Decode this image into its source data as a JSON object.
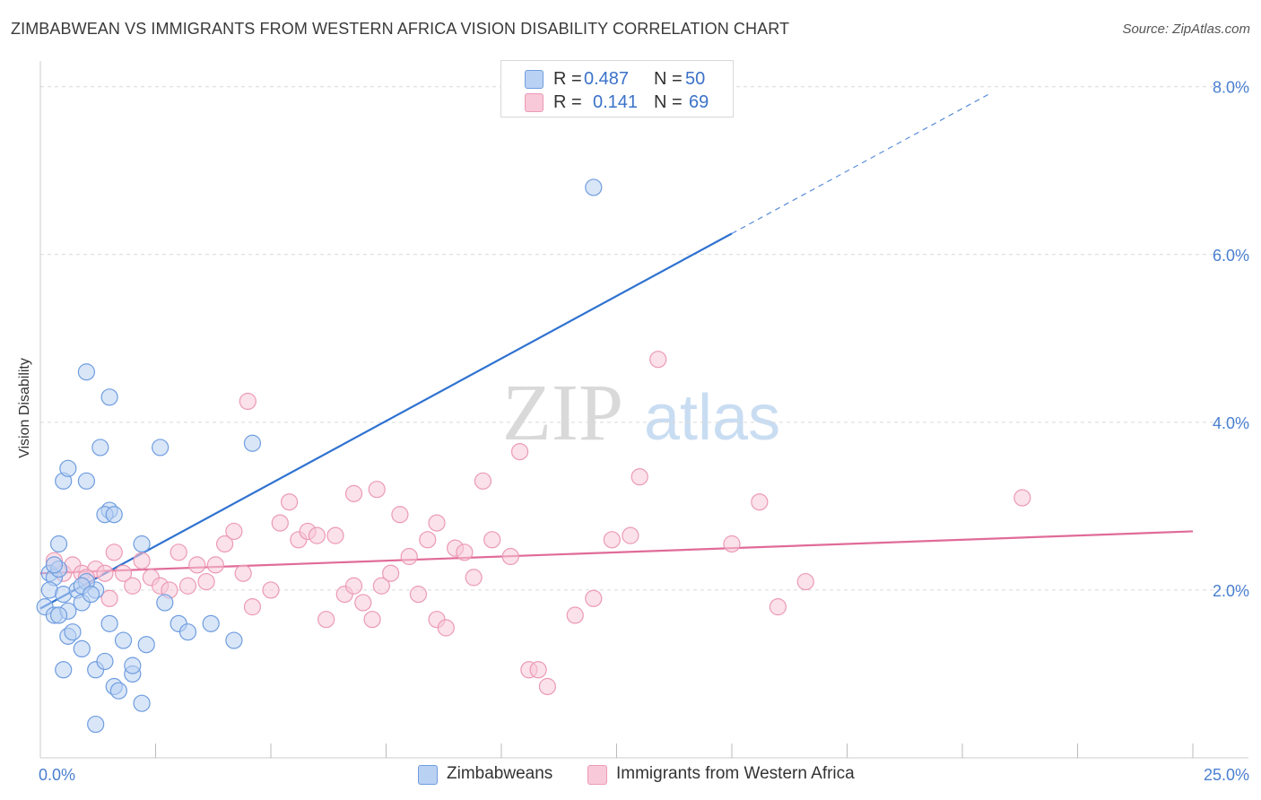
{
  "title": "ZIMBABWEAN VS IMMIGRANTS FROM WESTERN AFRICA VISION DISABILITY CORRELATION CHART",
  "source": "Source: ZipAtlas.com",
  "watermark": {
    "zip": "ZIP",
    "atlas": "atlas"
  },
  "legend_top": [
    {
      "r_label": "R =",
      "r_value": "0.487",
      "n_label": "N =",
      "n_value": "50"
    },
    {
      "r_label": "R =",
      "r_value": "0.141",
      "n_label": "N =",
      "n_value": "69"
    }
  ],
  "legend_bottom": [
    "Zimbabweans",
    "Immigrants from Western Africa"
  ],
  "colors": {
    "blue_fill": "#b9d1f3",
    "blue_stroke": "#6f9de0",
    "blue_line": "#2f72d0",
    "pink_fill": "#f8c9d8",
    "pink_stroke": "#ec9ab4",
    "pink_line": "#e06b98",
    "tick": "#4a7fd0",
    "grid": "#d9d9d9"
  },
  "chart_data": {
    "type": "scatter",
    "title": "ZIMBABWEAN VS IMMIGRANTS FROM WESTERN AFRICA VISION DISABILITY CORRELATION CHART",
    "xlabel": "",
    "ylabel": "Vision Disability",
    "xlim": [
      0,
      25
    ],
    "ylim": [
      0,
      8.2
    ],
    "x_tick_labels": [
      "0.0%",
      "25.0%"
    ],
    "y_ticks": [
      2,
      4,
      6,
      8
    ],
    "y_tick_labels": [
      "2.0%",
      "4.0%",
      "6.0%",
      "8.0%"
    ],
    "grid": "horizontal dashed",
    "legend_position": "top-center",
    "series": [
      {
        "name": "Zimbabweans",
        "trend": {
          "x0": 0,
          "y0": 1.78,
          "x1": 15,
          "y1": 6.25,
          "dashed_to_x": 20.6
        },
        "points": [
          [
            0.2,
            2.2
          ],
          [
            0.3,
            2.15
          ],
          [
            0.4,
            2.25
          ],
          [
            0.2,
            2.0
          ],
          [
            0.5,
            1.95
          ],
          [
            0.1,
            1.8
          ],
          [
            0.3,
            1.7
          ],
          [
            0.6,
            1.75
          ],
          [
            0.8,
            2.0
          ],
          [
            0.9,
            1.85
          ],
          [
            1.2,
            2.0
          ],
          [
            0.4,
            2.55
          ],
          [
            1.0,
            2.1
          ],
          [
            0.3,
            2.3
          ],
          [
            0.9,
            2.05
          ],
          [
            1.1,
            1.95
          ],
          [
            0.5,
            3.3
          ],
          [
            0.6,
            1.45
          ],
          [
            0.5,
            1.05
          ],
          [
            0.9,
            1.3
          ],
          [
            1.2,
            1.05
          ],
          [
            1.4,
            1.15
          ],
          [
            1.5,
            1.6
          ],
          [
            1.8,
            1.4
          ],
          [
            1.6,
            0.85
          ],
          [
            1.2,
            0.4
          ],
          [
            1.7,
            0.8
          ],
          [
            2.0,
            1.0
          ],
          [
            2.2,
            0.65
          ],
          [
            2.0,
            1.1
          ],
          [
            2.3,
            1.35
          ],
          [
            1.0,
            3.3
          ],
          [
            1.5,
            2.95
          ],
          [
            1.4,
            2.9
          ],
          [
            1.6,
            2.9
          ],
          [
            2.2,
            2.55
          ],
          [
            0.6,
            3.45
          ],
          [
            1.3,
            3.7
          ],
          [
            1.0,
            4.6
          ],
          [
            1.5,
            4.3
          ],
          [
            2.6,
            3.7
          ],
          [
            2.7,
            1.85
          ],
          [
            3.0,
            1.6
          ],
          [
            3.7,
            1.6
          ],
          [
            4.2,
            1.4
          ],
          [
            3.2,
            1.5
          ],
          [
            0.7,
            1.5
          ],
          [
            0.4,
            1.7
          ],
          [
            4.6,
            3.75
          ],
          [
            12.0,
            6.8
          ]
        ]
      },
      {
        "name": "Immigrants from Western Africa",
        "trend": {
          "x0": 0,
          "y0": 2.2,
          "x1": 25,
          "y1": 2.7
        },
        "points": [
          [
            0.3,
            2.35
          ],
          [
            0.5,
            2.2
          ],
          [
            0.7,
            2.3
          ],
          [
            0.9,
            2.2
          ],
          [
            1.2,
            2.25
          ],
          [
            1.4,
            2.2
          ],
          [
            1.0,
            2.15
          ],
          [
            1.6,
            2.45
          ],
          [
            1.8,
            2.2
          ],
          [
            1.5,
            1.9
          ],
          [
            2.0,
            2.05
          ],
          [
            2.2,
            2.35
          ],
          [
            2.4,
            2.15
          ],
          [
            2.6,
            2.05
          ],
          [
            2.8,
            2.0
          ],
          [
            3.0,
            2.45
          ],
          [
            3.2,
            2.05
          ],
          [
            3.4,
            2.3
          ],
          [
            3.6,
            2.1
          ],
          [
            3.8,
            2.3
          ],
          [
            4.0,
            2.55
          ],
          [
            4.2,
            2.7
          ],
          [
            4.4,
            2.2
          ],
          [
            4.6,
            1.8
          ],
          [
            5.0,
            2.0
          ],
          [
            5.2,
            2.8
          ],
          [
            5.4,
            3.05
          ],
          [
            5.6,
            2.6
          ],
          [
            5.8,
            2.7
          ],
          [
            6.0,
            2.65
          ],
          [
            6.2,
            1.65
          ],
          [
            6.4,
            2.65
          ],
          [
            6.6,
            1.95
          ],
          [
            6.8,
            2.05
          ],
          [
            7.0,
            1.85
          ],
          [
            7.2,
            1.65
          ],
          [
            7.4,
            2.05
          ],
          [
            7.6,
            2.2
          ],
          [
            7.8,
            2.9
          ],
          [
            8.0,
            2.4
          ],
          [
            8.2,
            1.95
          ],
          [
            8.4,
            2.6
          ],
          [
            8.6,
            1.65
          ],
          [
            8.8,
            1.55
          ],
          [
            9.0,
            2.5
          ],
          [
            9.2,
            2.45
          ],
          [
            9.4,
            2.15
          ],
          [
            9.6,
            3.3
          ],
          [
            9.8,
            2.6
          ],
          [
            10.2,
            2.4
          ],
          [
            10.4,
            3.65
          ],
          [
            10.6,
            1.05
          ],
          [
            10.8,
            1.05
          ],
          [
            11.0,
            0.85
          ],
          [
            11.6,
            1.7
          ],
          [
            12.0,
            1.9
          ],
          [
            12.4,
            2.6
          ],
          [
            12.8,
            2.65
          ],
          [
            13.0,
            3.35
          ],
          [
            13.4,
            4.75
          ],
          [
            15.0,
            2.55
          ],
          [
            15.6,
            3.05
          ],
          [
            16.0,
            1.8
          ],
          [
            16.6,
            2.1
          ],
          [
            6.8,
            3.15
          ],
          [
            7.3,
            3.2
          ],
          [
            4.5,
            4.25
          ],
          [
            8.6,
            2.8
          ],
          [
            21.3,
            3.1
          ]
        ]
      }
    ]
  }
}
